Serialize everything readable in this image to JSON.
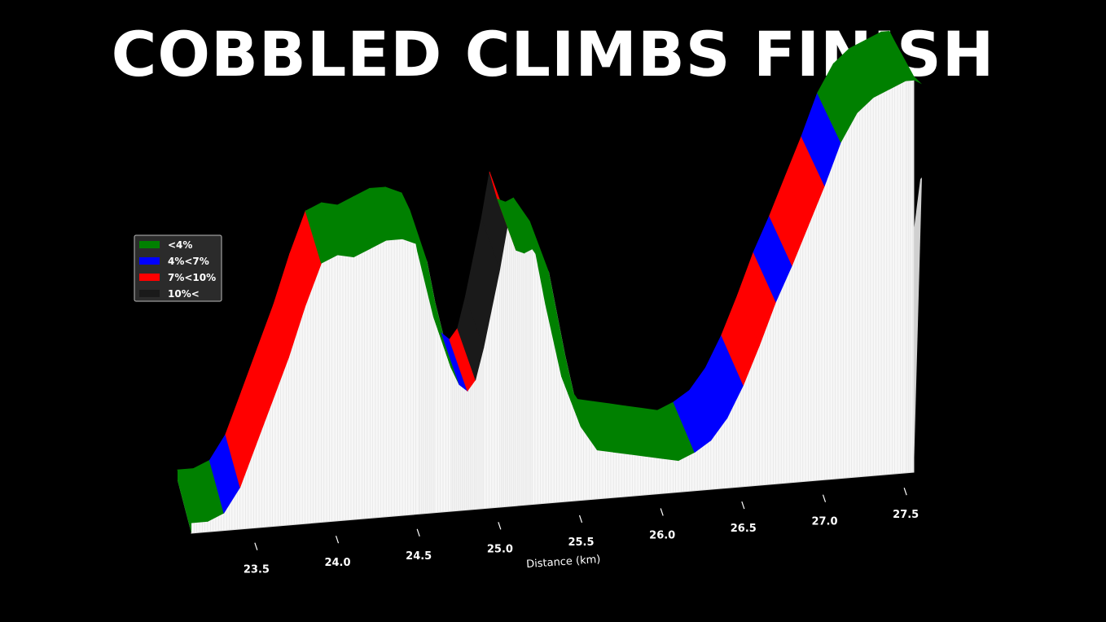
{
  "title": "COBBLED CLIMBS FINISH",
  "chart_data": {
    "type": "area",
    "title": "COBBLED CLIMBS FINISH",
    "xlabel": "Distance (km)",
    "ylabel": "",
    "xlim": [
      23.3,
      27.75
    ],
    "x_ticks": [
      "23.5",
      "24.0",
      "24.5",
      "25.0",
      "25.5",
      "26.0",
      "26.5",
      "27.0",
      "27.5"
    ],
    "grid": false,
    "legend_position": "upper-left",
    "legend": [
      {
        "label": "<4%",
        "color": "#008000"
      },
      {
        "label": "4%<7%",
        "color": "#0000ff"
      },
      {
        "label": "7%<10%",
        "color": "#ff0000"
      },
      {
        "label": "10%<",
        "color": "#1a1a1a"
      }
    ],
    "elevation_profile": {
      "x": [
        23.3,
        23.4,
        23.5,
        23.6,
        23.7,
        23.8,
        23.9,
        24.0,
        24.1,
        24.2,
        24.3,
        24.4,
        24.5,
        24.6,
        24.7,
        24.75,
        24.8,
        24.9,
        24.95,
        25.0,
        25.05,
        25.1,
        25.2,
        25.25,
        25.3,
        25.35,
        25.4,
        25.5,
        25.6,
        25.7,
        25.8,
        25.9,
        26.0,
        26.1,
        26.2,
        26.3,
        26.4,
        26.5,
        26.6,
        26.7,
        26.8,
        26.9,
        27.0,
        27.1,
        27.2,
        27.3,
        27.4,
        27.5,
        27.6,
        27.7,
        27.75
      ],
      "elevation_m": [
        3,
        3,
        5,
        12,
        24,
        36,
        48,
        62,
        74,
        76,
        75,
        77,
        79,
        79,
        77,
        72,
        60,
        41,
        36,
        34,
        37,
        46,
        68,
        81,
        73,
        72,
        73,
        66,
        42,
        21,
        14,
        13,
        12,
        11,
        10,
        9,
        11,
        14,
        20,
        29,
        40,
        52,
        62,
        73,
        84,
        96,
        104,
        108,
        110,
        112,
        112
      ],
      "gradient_class": [
        "<4%",
        "<4%",
        "4%<7%",
        "7%<10%",
        "7%<10%",
        "7%<10%",
        "7%<10%",
        "7%<10%",
        "<4%",
        "<4%",
        "<4%",
        "<4%",
        "<4%",
        "<4%",
        "<4%",
        "<4%",
        "<4%",
        "<4%",
        "4%<7%",
        "7%<10%",
        "10%<",
        "10%<",
        "10%<",
        "7%<10%",
        "<4%",
        "<4%",
        "<4%",
        "<4%",
        "<4%",
        "<4%",
        "<4%",
        "<4%",
        "<4%",
        "<4%",
        "<4%",
        "<4%",
        "4%<7%",
        "4%<7%",
        "4%<7%",
        "7%<10%",
        "7%<10%",
        "4%<7%",
        "7%<10%",
        "7%<10%",
        "4%<7%",
        "<4%",
        "<4%",
        "<4%",
        "<4%",
        "<4%"
      ]
    }
  }
}
